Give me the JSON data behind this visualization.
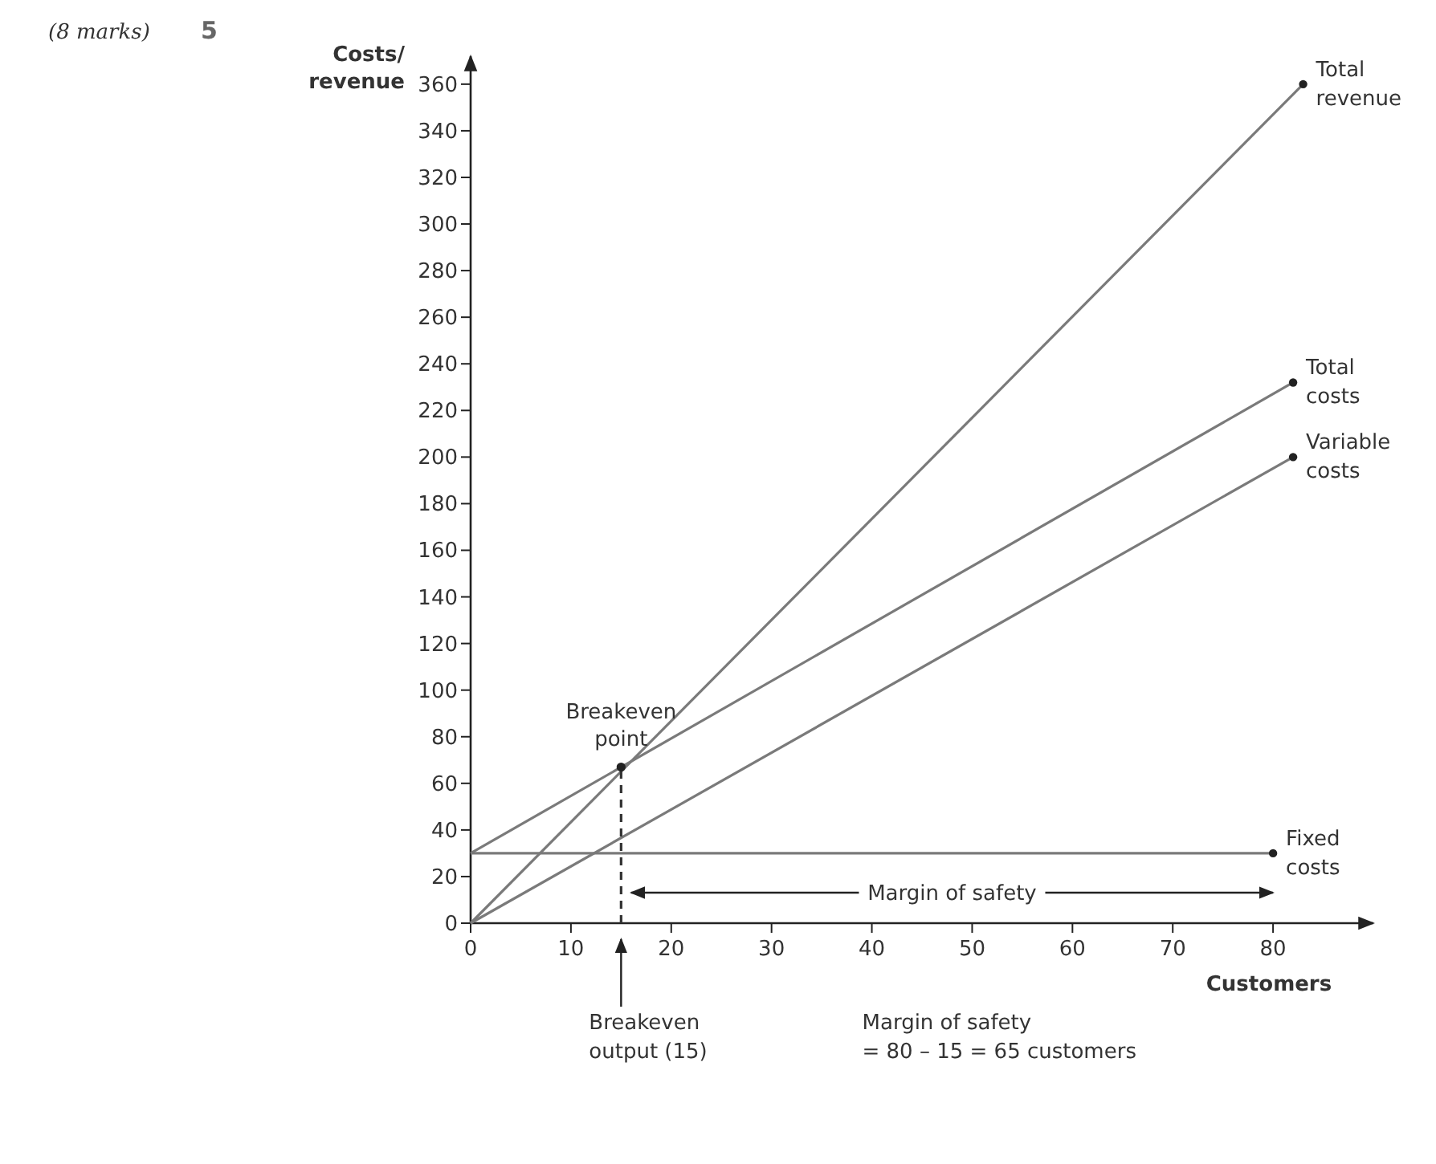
{
  "chart_data": {
    "type": "line",
    "xlabel": "Customers",
    "ylabel": "Costs/ revenue",
    "xlim": [
      0,
      90
    ],
    "ylim": [
      0,
      372
    ],
    "xticks": [
      0,
      10,
      20,
      30,
      40,
      50,
      60,
      70,
      80
    ],
    "yticks": [
      0,
      20,
      40,
      60,
      80,
      100,
      120,
      140,
      160,
      180,
      200,
      220,
      240,
      260,
      280,
      300,
      320,
      340,
      360
    ],
    "grid": false,
    "marker": "circle",
    "line_style": "solid",
    "series": [
      {
        "name": "Total revenue",
        "color": "#7a7a7a",
        "x": [
          0,
          83
        ],
        "values": [
          0,
          360
        ]
      },
      {
        "name": "Total costs",
        "color": "#7a7a7a",
        "x": [
          0,
          82
        ],
        "values": [
          30,
          232
        ]
      },
      {
        "name": "Variable costs",
        "color": "#7a7a7a",
        "x": [
          0,
          82
        ],
        "values": [
          0,
          200
        ]
      },
      {
        "name": "Fixed costs",
        "color": "#7a7a7a",
        "x": [
          0,
          80
        ],
        "values": [
          30,
          30
        ]
      },
      {
        "type": "line",
        "color": "#333333",
        "x": [
          15,
          15
        ],
        "values": [
          0,
          67
        ],
        "line_style": "dashed",
        "marker": "none"
      },
      {
        "type": "scatter",
        "color": "#222222",
        "x": [
          15
        ],
        "values": [
          67
        ]
      }
    ],
    "annotations": [
      "(8 marks)",
      "5",
      {
        "text": "Breakeven point",
        "x": 15,
        "y": 67
      },
      "Breakeven output (15)",
      "Margin of safety = 80 – 15 = 65 customers",
      "Margin of safety"
    ]
  }
}
